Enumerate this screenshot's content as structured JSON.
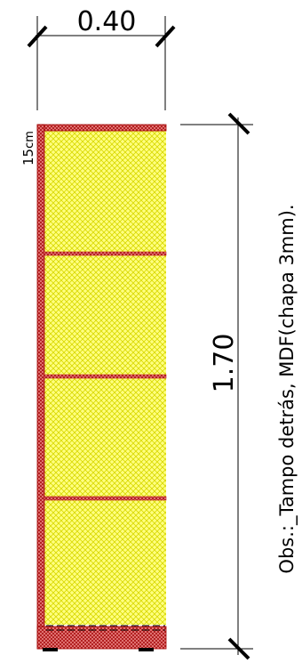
{
  "drawing": {
    "width_label": "0.40",
    "height_label": "1.70",
    "thickness_label": "15",
    "thickness_unit": "cm",
    "note": "Obs.:_Tampo detrás, MDF(chapa 3mm).",
    "shelf_count": 3
  },
  "colors": {
    "panel_fill": "#ffff80",
    "panel_hatch": "#d8d800",
    "frame_fill": "#e88080",
    "frame_hatch": "#a00000",
    "line": "#000000"
  }
}
